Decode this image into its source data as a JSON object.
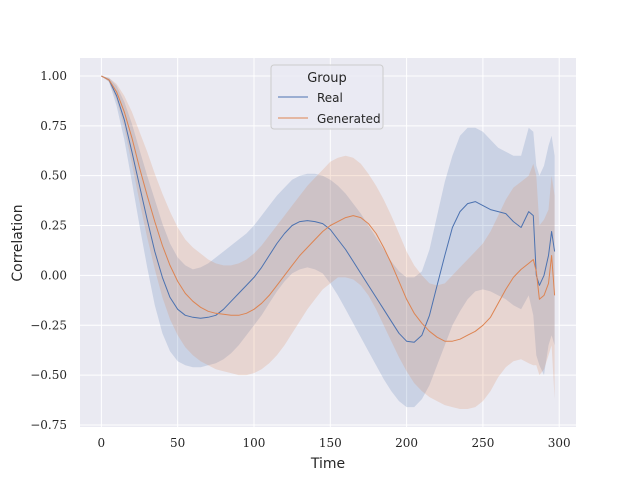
{
  "chart_data": {
    "type": "line",
    "xlabel": "Time",
    "ylabel": "Correlation",
    "xlim": [
      -14,
      311
    ],
    "ylim": [
      -0.76,
      1.09
    ],
    "xticks": [
      0,
      50,
      100,
      150,
      200,
      250,
      300
    ],
    "yticks": [
      -0.75,
      -0.5,
      -0.25,
      0.0,
      0.25,
      0.5,
      0.75,
      1.0
    ],
    "ytick_labels": [
      "−0.75",
      "−0.50",
      "−0.25",
      "0.00",
      "0.25",
      "0.50",
      "0.75",
      "1.00"
    ],
    "xtick_labels": [
      "0",
      "50",
      "100",
      "150",
      "200",
      "250",
      "300"
    ],
    "grid": true,
    "legend": {
      "title": "Group",
      "position": "top-center"
    },
    "series": [
      {
        "name": "Real",
        "color": "#4c72b0",
        "x": [
          0,
          5,
          10,
          15,
          20,
          25,
          30,
          35,
          40,
          45,
          50,
          55,
          60,
          65,
          70,
          75,
          80,
          85,
          90,
          95,
          100,
          105,
          110,
          115,
          120,
          125,
          130,
          135,
          140,
          145,
          150,
          155,
          160,
          165,
          170,
          175,
          180,
          185,
          190,
          195,
          200,
          205,
          210,
          215,
          220,
          225,
          230,
          235,
          240,
          245,
          250,
          255,
          260,
          265,
          270,
          275,
          280,
          283,
          285,
          287,
          290,
          293,
          295,
          297
        ],
        "y": [
          1.0,
          0.98,
          0.9,
          0.78,
          0.62,
          0.45,
          0.28,
          0.12,
          -0.01,
          -0.11,
          -0.17,
          -0.2,
          -0.21,
          -0.215,
          -0.21,
          -0.2,
          -0.17,
          -0.13,
          -0.09,
          -0.05,
          -0.01,
          0.04,
          0.1,
          0.16,
          0.21,
          0.25,
          0.27,
          0.275,
          0.27,
          0.26,
          0.23,
          0.18,
          0.13,
          0.07,
          0.01,
          -0.05,
          -0.11,
          -0.17,
          -0.23,
          -0.29,
          -0.33,
          -0.335,
          -0.3,
          -0.2,
          -0.05,
          0.1,
          0.24,
          0.32,
          0.36,
          0.37,
          0.35,
          0.33,
          0.32,
          0.31,
          0.27,
          0.24,
          0.32,
          0.3,
          0.0,
          -0.05,
          0.0,
          0.1,
          0.22,
          0.12
        ],
        "lower": [
          1.0,
          0.97,
          0.85,
          0.68,
          0.47,
          0.25,
          0.04,
          -0.15,
          -0.29,
          -0.38,
          -0.43,
          -0.45,
          -0.46,
          -0.46,
          -0.45,
          -0.44,
          -0.42,
          -0.39,
          -0.35,
          -0.3,
          -0.25,
          -0.2,
          -0.14,
          -0.08,
          -0.03,
          0.01,
          0.03,
          0.04,
          0.03,
          0.01,
          -0.04,
          -0.1,
          -0.17,
          -0.24,
          -0.31,
          -0.38,
          -0.45,
          -0.52,
          -0.58,
          -0.63,
          -0.66,
          -0.66,
          -0.62,
          -0.55,
          -0.45,
          -0.35,
          -0.25,
          -0.18,
          -0.12,
          -0.08,
          -0.07,
          -0.08,
          -0.1,
          -0.12,
          -0.15,
          -0.17,
          -0.1,
          -0.2,
          -0.4,
          -0.45,
          -0.5,
          -0.35,
          -0.3,
          -0.35
        ],
        "upper": [
          1.0,
          0.99,
          0.95,
          0.87,
          0.76,
          0.63,
          0.5,
          0.38,
          0.26,
          0.16,
          0.09,
          0.05,
          0.03,
          0.04,
          0.06,
          0.09,
          0.12,
          0.15,
          0.18,
          0.21,
          0.25,
          0.3,
          0.35,
          0.4,
          0.44,
          0.48,
          0.5,
          0.51,
          0.51,
          0.5,
          0.48,
          0.45,
          0.41,
          0.36,
          0.31,
          0.25,
          0.19,
          0.13,
          0.07,
          0.02,
          -0.01,
          -0.01,
          0.02,
          0.13,
          0.3,
          0.47,
          0.6,
          0.7,
          0.74,
          0.74,
          0.72,
          0.68,
          0.64,
          0.62,
          0.6,
          0.6,
          0.74,
          0.72,
          0.55,
          0.5,
          0.55,
          0.65,
          0.7,
          0.6
        ]
      },
      {
        "name": "Generated",
        "color": "#dd8452",
        "x": [
          0,
          5,
          10,
          15,
          20,
          25,
          30,
          35,
          40,
          45,
          50,
          55,
          60,
          65,
          70,
          75,
          80,
          85,
          90,
          95,
          100,
          105,
          110,
          115,
          120,
          125,
          130,
          135,
          140,
          145,
          150,
          155,
          160,
          165,
          170,
          175,
          180,
          185,
          190,
          195,
          200,
          205,
          210,
          215,
          220,
          225,
          230,
          235,
          240,
          245,
          250,
          255,
          260,
          265,
          270,
          275,
          280,
          283,
          285,
          287,
          290,
          293,
          295,
          297
        ],
        "y": [
          1.0,
          0.98,
          0.92,
          0.82,
          0.69,
          0.54,
          0.4,
          0.27,
          0.15,
          0.05,
          -0.03,
          -0.09,
          -0.13,
          -0.16,
          -0.18,
          -0.19,
          -0.195,
          -0.2,
          -0.2,
          -0.19,
          -0.17,
          -0.14,
          -0.1,
          -0.05,
          0.0,
          0.05,
          0.1,
          0.14,
          0.18,
          0.22,
          0.25,
          0.27,
          0.29,
          0.3,
          0.29,
          0.26,
          0.21,
          0.14,
          0.06,
          -0.03,
          -0.12,
          -0.19,
          -0.24,
          -0.28,
          -0.31,
          -0.33,
          -0.33,
          -0.32,
          -0.3,
          -0.28,
          -0.25,
          -0.21,
          -0.14,
          -0.07,
          -0.01,
          0.03,
          0.06,
          0.08,
          0.02,
          -0.12,
          -0.1,
          -0.04,
          0.1,
          -0.1
        ],
        "lower": [
          1.0,
          0.97,
          0.88,
          0.74,
          0.56,
          0.37,
          0.19,
          0.03,
          -0.11,
          -0.22,
          -0.3,
          -0.36,
          -0.4,
          -0.43,
          -0.45,
          -0.47,
          -0.48,
          -0.49,
          -0.5,
          -0.5,
          -0.49,
          -0.47,
          -0.44,
          -0.4,
          -0.35,
          -0.29,
          -0.23,
          -0.17,
          -0.12,
          -0.07,
          -0.04,
          -0.01,
          -0.01,
          -0.02,
          -0.05,
          -0.1,
          -0.17,
          -0.25,
          -0.33,
          -0.41,
          -0.48,
          -0.54,
          -0.58,
          -0.61,
          -0.63,
          -0.65,
          -0.66,
          -0.67,
          -0.67,
          -0.66,
          -0.63,
          -0.58,
          -0.51,
          -0.46,
          -0.43,
          -0.42,
          -0.44,
          -0.45,
          -0.45,
          -0.5,
          -0.47,
          -0.4,
          -0.35,
          -0.62
        ],
        "upper": [
          1.0,
          0.99,
          0.96,
          0.9,
          0.82,
          0.72,
          0.62,
          0.51,
          0.41,
          0.32,
          0.24,
          0.18,
          0.14,
          0.11,
          0.08,
          0.06,
          0.05,
          0.05,
          0.06,
          0.08,
          0.11,
          0.15,
          0.2,
          0.25,
          0.3,
          0.35,
          0.4,
          0.45,
          0.49,
          0.53,
          0.57,
          0.59,
          0.6,
          0.59,
          0.56,
          0.51,
          0.45,
          0.38,
          0.3,
          0.21,
          0.12,
          0.05,
          0.0,
          -0.04,
          -0.05,
          -0.04,
          0.0,
          0.04,
          0.08,
          0.12,
          0.16,
          0.22,
          0.3,
          0.38,
          0.44,
          0.47,
          0.5,
          0.56,
          0.5,
          0.25,
          0.28,
          0.33,
          0.5,
          0.4
        ]
      }
    ]
  }
}
